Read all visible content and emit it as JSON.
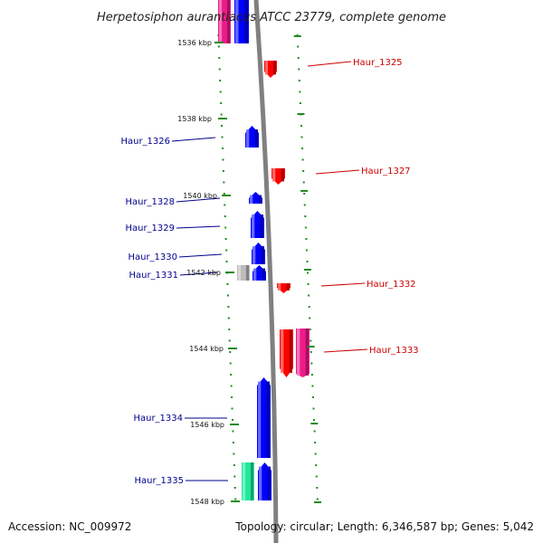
{
  "title": "Herpetosiphon aurantiacus ATCC 23779, complete genome",
  "accession": "Accession: NC_009972",
  "topology": "Topology: circular; Length: 6,346,587 bp; Genes: 5,042",
  "colors": {
    "backbone": "#808080",
    "ticks": "#228B22",
    "forward_gene": "#0000ff",
    "reverse_gene": "#ff0000",
    "magenta_gene": "#ee1a8a",
    "grey_gene": "#bcbcbc",
    "green_gene": "#22e89c",
    "forward_label": "#00008b",
    "reverse_label": "#cc0000"
  },
  "ticks": [
    {
      "label": "1536 kbp"
    },
    {
      "label": "1538 kbp"
    },
    {
      "label": "1540 kbp"
    },
    {
      "label": "1542 kbp"
    },
    {
      "label": "1544 kbp"
    },
    {
      "label": "1546 kbp"
    },
    {
      "label": "1548 kbp"
    }
  ],
  "genes": [
    {
      "name": "Haur_1325",
      "strand": "reverse"
    },
    {
      "name": "Haur_1326",
      "strand": "forward"
    },
    {
      "name": "Haur_1327",
      "strand": "reverse"
    },
    {
      "name": "Haur_1328",
      "strand": "forward"
    },
    {
      "name": "Haur_1329",
      "strand": "forward"
    },
    {
      "name": "Haur_1330",
      "strand": "forward"
    },
    {
      "name": "Haur_1331",
      "strand": "forward"
    },
    {
      "name": "Haur_1332",
      "strand": "reverse"
    },
    {
      "name": "Haur_1333",
      "strand": "reverse"
    },
    {
      "name": "Haur_1334",
      "strand": "forward"
    },
    {
      "name": "Haur_1335",
      "strand": "forward"
    }
  ]
}
